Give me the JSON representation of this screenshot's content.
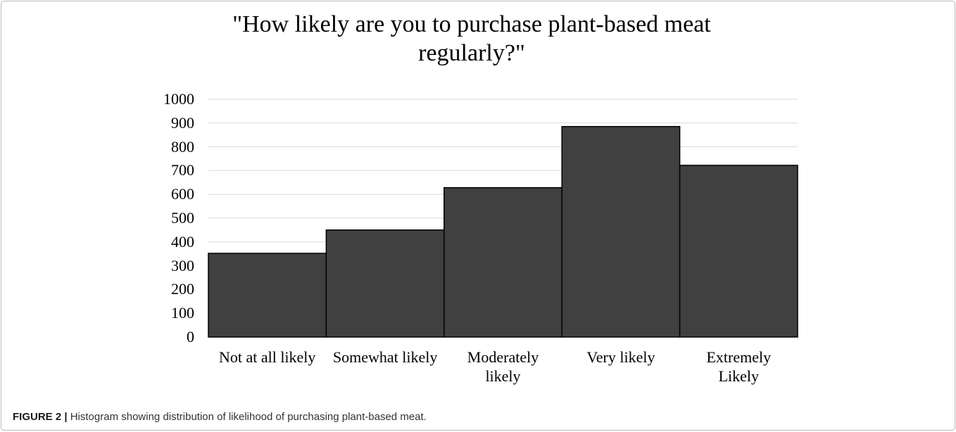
{
  "chart_data": {
    "type": "bar",
    "title": "\"How likely are you to purchase plant-based meat\nregularly?\"",
    "categories": [
      "Not at all likely",
      "Somewhat likely",
      "Moderately\nlikely",
      "Very likely",
      "Extremely\nLikely"
    ],
    "values": [
      352,
      450,
      628,
      885,
      722
    ],
    "color": "#404040",
    "ylim": [
      0,
      1000
    ],
    "yticks": [
      0,
      100,
      200,
      300,
      400,
      500,
      600,
      700,
      800,
      900,
      1000
    ],
    "grid": true
  },
  "caption": {
    "label": "FIGURE 2 |",
    "text": "Histogram showing distribution of likelihood of purchasing plant-based meat."
  }
}
